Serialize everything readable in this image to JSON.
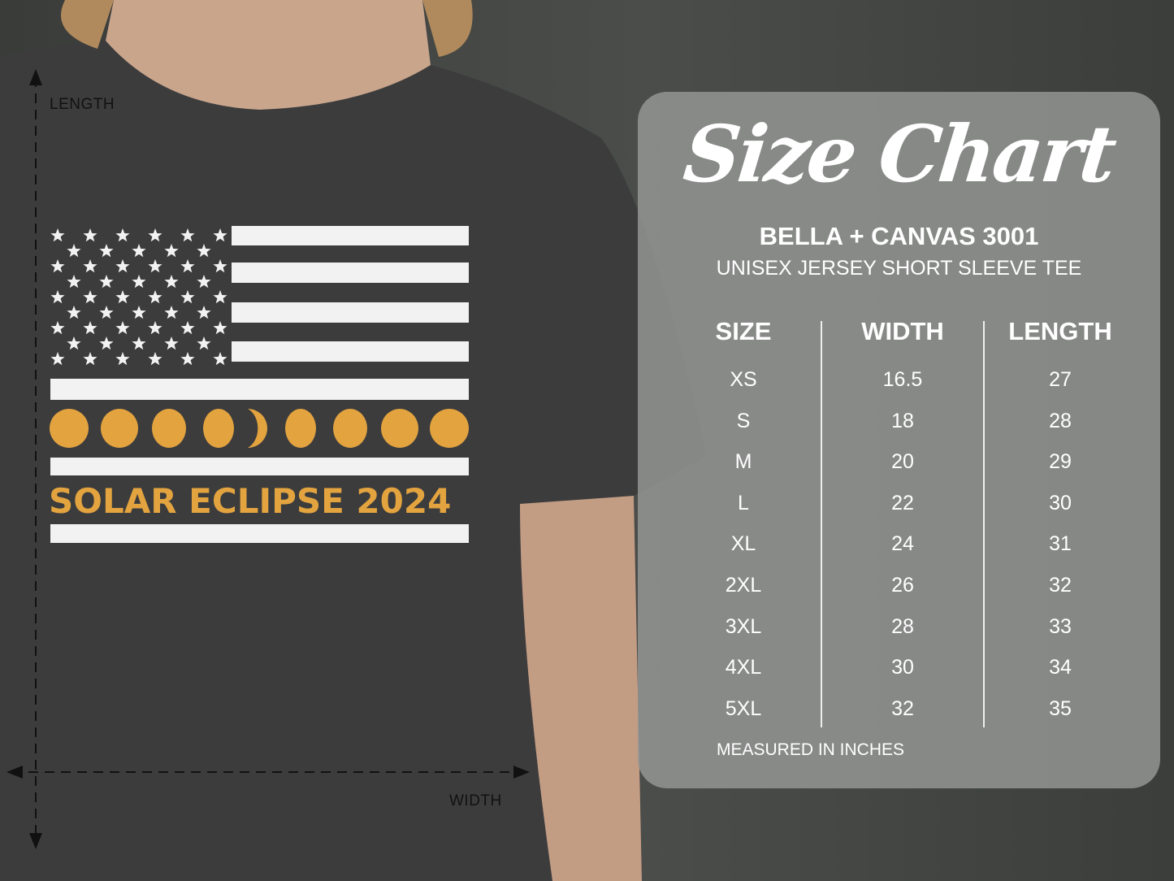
{
  "shirt": {
    "slogan": "SOLAR ECLIPSE 2024",
    "accent_color": "#e3a33f",
    "length_label": "LENGTH",
    "width_label": "WIDTH"
  },
  "size_chart": {
    "title": "Size Chart",
    "brand": "BELLA + CANVAS 3001",
    "product": "UNISEX JERSEY SHORT SLEEVE TEE",
    "headers": [
      "SIZE",
      "WIDTH",
      "LENGTH"
    ],
    "sizes": [
      "XS",
      "S",
      "M",
      "L",
      "XL",
      "2XL",
      "3XL",
      "4XL",
      "5XL"
    ],
    "widths": [
      "16.5",
      "18",
      "20",
      "22",
      "24",
      "26",
      "28",
      "30",
      "32"
    ],
    "lengths": [
      "27",
      "28",
      "29",
      "30",
      "31",
      "32",
      "33",
      "34",
      "35"
    ],
    "note": "MEASURED IN INCHES"
  }
}
